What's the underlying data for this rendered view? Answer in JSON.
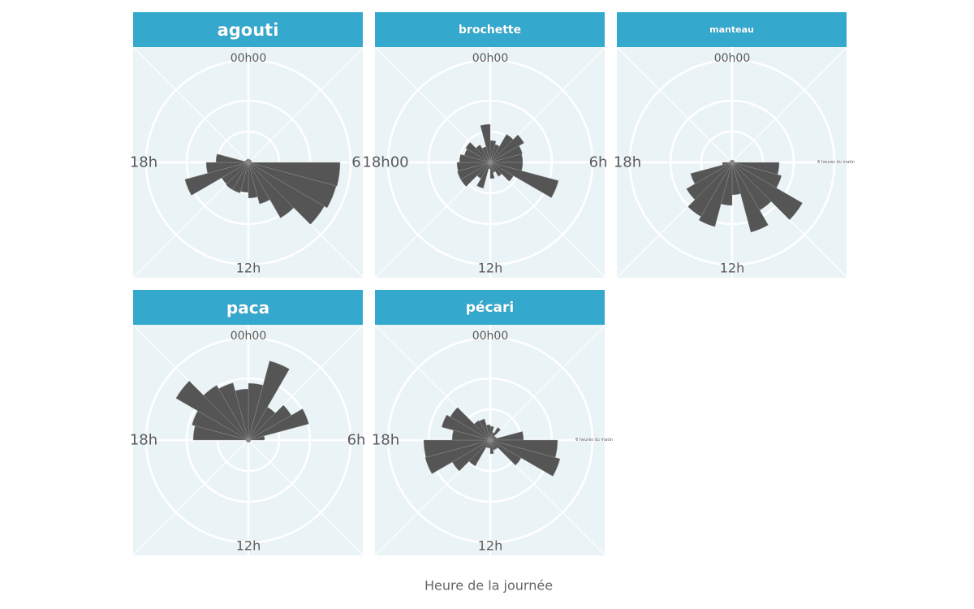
{
  "chart_data": {
    "type": "bar",
    "coord": "polar",
    "xlabel": "Heure de la journée",
    "ylabel": "",
    "hours": [
      0,
      1,
      2,
      3,
      4,
      5,
      6,
      7,
      8,
      9,
      10,
      11,
      12,
      13,
      14,
      15,
      16,
      17,
      18,
      19,
      20,
      21,
      22,
      23
    ],
    "ylim": [
      0,
      126
    ],
    "grid": true,
    "colors": {
      "bar": "#555555",
      "strip": "#34a9cd",
      "panel_bg": "#eaf3f6",
      "grid": "#ffffff"
    },
    "panels": [
      {
        "title": "agouti",
        "labels": {
          "top": "00h00",
          "right": "6",
          "bottom": "12h",
          "left": "18h"
        },
        "values": [
          4,
          4,
          4,
          4,
          4,
          4,
          113,
          112,
          108,
          79,
          53,
          44,
          37,
          39,
          39,
          38,
          81,
          52,
          40,
          4,
          4,
          4,
          4,
          4
        ]
      },
      {
        "title": "brochette",
        "labels": {
          "top": "00h00",
          "right": "6h",
          "bottom": "12h",
          "left": "18h00"
        },
        "values": [
          27,
          23,
          40,
          48,
          41,
          40,
          40,
          87,
          33,
          20,
          13,
          20,
          8,
          33,
          23,
          42,
          42,
          41,
          38,
          33,
          35,
          25,
          20,
          47
        ]
      },
      {
        "title": "manteau",
        "labels": {
          "top": "00h00",
          "right": "6 heures du matin",
          "bottom": "12h",
          "left": "18h"
        },
        "values": [
          3,
          3,
          3,
          3,
          3,
          3,
          58,
          63,
          100,
          68,
          89,
          40,
          53,
          82,
          77,
          65,
          53,
          12,
          3,
          3,
          3,
          3,
          3,
          3
        ]
      },
      {
        "title": "paca",
        "labels": {
          "top": "00h00",
          "right": "6h",
          "bottom": "12h",
          "left": "18h"
        },
        "values": [
          70,
          101,
          47,
          61,
          77,
          20,
          0,
          0,
          0,
          0,
          0,
          0,
          0,
          0,
          0,
          0,
          0,
          0,
          68,
          72,
          103,
          78,
          73,
          63
        ]
      },
      {
        "title": "pécari",
        "labels": {
          "top": "00h00",
          "right": "6 heures du matin",
          "bottom": "12h",
          "left": "18h"
        },
        "values": [
          17,
          10,
          18,
          7,
          8,
          41,
          83,
          89,
          44,
          13,
          13,
          17,
          10,
          10,
          37,
          54,
          83,
          82,
          47,
          62,
          57,
          28,
          27,
          19
        ]
      }
    ]
  }
}
